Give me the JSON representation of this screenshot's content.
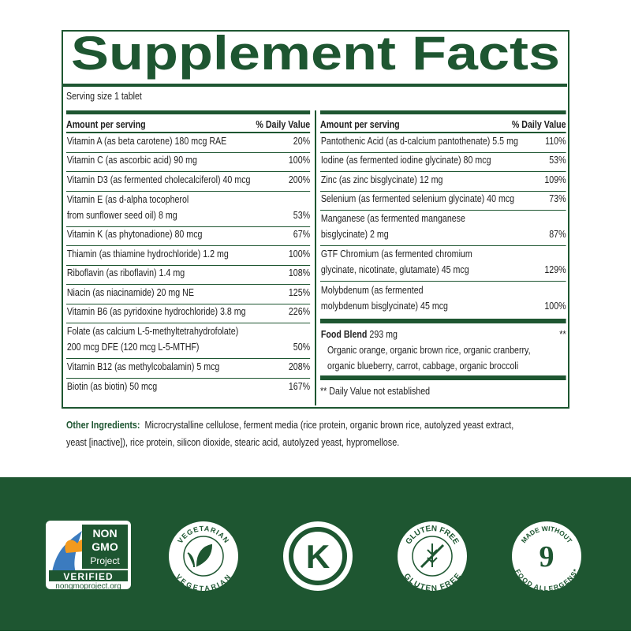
{
  "title": "Supplement Facts",
  "serving_size": "Serving size 1 tablet",
  "columns": [
    {
      "header": {
        "amount": "Amount per serving",
        "dv": "% Daily Value"
      },
      "rows": [
        {
          "name": [
            "Vitamin A (as beta carotene) 180 mcg RAE"
          ],
          "dv": "20%"
        },
        {
          "name": [
            "Vitamin C (as ascorbic acid) 90 mg"
          ],
          "dv": "100%"
        },
        {
          "name": [
            "Vitamin D3 (as fermented cholecalciferol) 40 mcg"
          ],
          "dv": "200%"
        },
        {
          "name": [
            "Vitamin E (as d-alpha tocopherol",
            "from sunflower seed oil) 8 mg"
          ],
          "dv": "53%"
        },
        {
          "name": [
            "Vitamin K (as phytonadione) 80 mcg"
          ],
          "dv": "67%"
        },
        {
          "name": [
            "Thiamin (as thiamine hydrochloride) 1.2 mg"
          ],
          "dv": "100%"
        },
        {
          "name": [
            "Riboflavin (as riboflavin) 1.4 mg"
          ],
          "dv": "108%"
        },
        {
          "name": [
            "Niacin (as niacinamide) 20 mg NE"
          ],
          "dv": "125%"
        },
        {
          "name": [
            "Vitamin B6 (as pyridoxine hydrochloride) 3.8 mg"
          ],
          "dv": "226%"
        },
        {
          "name": [
            "Folate (as calcium L-5-methyltetrahydrofolate)",
            "200 mcg DFE (120 mcg L-5-MTHF)"
          ],
          "dv": "50%"
        },
        {
          "name": [
            "Vitamin B12 (as methylcobalamin) 5 mcg"
          ],
          "dv": "208%"
        },
        {
          "name": [
            "Biotin (as biotin) 50 mcg"
          ],
          "dv": "167%"
        }
      ]
    },
    {
      "header": {
        "amount": "Amount per serving",
        "dv": "% Daily Value"
      },
      "rows": [
        {
          "name": [
            "Pantothenic Acid (as d-calcium pantothenate) 5.5 mg"
          ],
          "dv": "110%"
        },
        {
          "name": [
            "Iodine (as fermented iodine glycinate) 80 mcg"
          ],
          "dv": "53%"
        },
        {
          "name": [
            "Zinc (as zinc bisglycinate) 12 mg"
          ],
          "dv": "109%"
        },
        {
          "name": [
            "Selenium (as fermented selenium glycinate) 40 mcg"
          ],
          "dv": "73%"
        },
        {
          "name": [
            "Manganese (as fermented manganese",
            "bisglycinate) 2 mg"
          ],
          "dv": "87%"
        },
        {
          "name": [
            "GTF Chromium (as fermented chromium",
            "glycinate, nicotinate, glutamate) 45 mcg"
          ],
          "dv": "129%"
        },
        {
          "name": [
            "Molybdenum (as fermented",
            "molybdenum bisglycinate) 45 mcg"
          ],
          "dv": "100%"
        }
      ]
    }
  ],
  "food_blend": {
    "name": "Food Blend",
    "amount": "293 mg",
    "mark": "**",
    "description": [
      "Organic orange, organic brown rice, organic cranberry,",
      "organic blueberry, carrot, cabbage, organic broccoli"
    ]
  },
  "footnote": "** Daily Value not established",
  "other_ingredients": {
    "label": "Other Ingredients:",
    "text": [
      "Microcrystalline cellulose, ferment media (rice protein, organic brown rice, autolyzed yeast extract,",
      "yeast [inactive]), rice protein, silicon dioxide, stearic acid, autolyzed yeast, hypromellose."
    ]
  },
  "badges": {
    "non_gmo": {
      "top": "NON",
      "middle": "GMO",
      "project": "Project",
      "verified": "VERIFIED",
      "url": "nongmoproject.org"
    },
    "vegetarian": "VEGETARIAN",
    "kosher": "K",
    "gluten_free": "GLUTEN FREE",
    "allergens": {
      "top": "MADE WITHOUT",
      "number": "9",
      "bottom": "FOOD ALLERGENS*"
    }
  }
}
